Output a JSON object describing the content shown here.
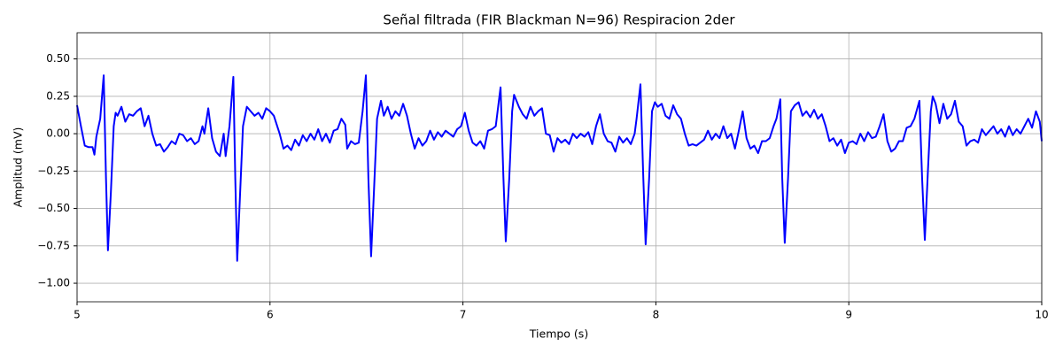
{
  "chart_data": {
    "type": "line",
    "title": "Señal filtrada (FIR Blackman N=96) Respiracion 2der",
    "x_label": "Tiempo (s)",
    "y_label": "Amplitud (mV)",
    "color": "#0000ff",
    "grid": true,
    "xlim": [
      5,
      10
    ],
    "xticks": [
      5,
      6,
      7,
      8,
      9,
      10
    ],
    "ylim": [
      -1.124,
      0.675
    ],
    "yticks": [
      {
        "value": -1,
        "label": "−1.00"
      },
      {
        "value": -0.75,
        "label": "−0.75"
      },
      {
        "value": -0.5,
        "label": "−0.50"
      },
      {
        "value": -0.25,
        "label": "−0.25"
      },
      {
        "value": 0,
        "label": "0.00"
      },
      {
        "value": 0.25,
        "label": "0.25"
      },
      {
        "value": 0.5,
        "label": "0.50"
      }
    ],
    "x": [
      5.0,
      5.02,
      5.04,
      5.06,
      5.08,
      5.09,
      5.1,
      5.12,
      5.138,
      5.15,
      5.16,
      5.175,
      5.19,
      5.2,
      5.21,
      5.23,
      5.25,
      5.27,
      5.29,
      5.31,
      5.33,
      5.35,
      5.37,
      5.39,
      5.41,
      5.43,
      5.45,
      5.47,
      5.49,
      5.51,
      5.53,
      5.55,
      5.57,
      5.59,
      5.61,
      5.63,
      5.65,
      5.66,
      5.68,
      5.7,
      5.72,
      5.74,
      5.76,
      5.77,
      5.79,
      5.81,
      5.82,
      5.83,
      5.845,
      5.86,
      5.88,
      5.9,
      5.92,
      5.94,
      5.96,
      5.98,
      6.0,
      6.02,
      6.05,
      6.07,
      6.09,
      6.11,
      6.13,
      6.15,
      6.17,
      6.19,
      6.21,
      6.23,
      6.25,
      6.27,
      6.29,
      6.31,
      6.33,
      6.35,
      6.37,
      6.39,
      6.4,
      6.42,
      6.44,
      6.46,
      6.48,
      6.497,
      6.51,
      6.524,
      6.54,
      6.555,
      6.575,
      6.59,
      6.61,
      6.63,
      6.65,
      6.67,
      6.69,
      6.71,
      6.73,
      6.75,
      6.77,
      6.79,
      6.81,
      6.83,
      6.85,
      6.87,
      6.89,
      6.91,
      6.93,
      6.95,
      6.97,
      6.99,
      7.01,
      7.03,
      7.05,
      7.07,
      7.09,
      7.11,
      7.13,
      7.15,
      7.17,
      7.195,
      7.21,
      7.222,
      7.24,
      7.255,
      7.265,
      7.29,
      7.31,
      7.33,
      7.35,
      7.37,
      7.39,
      7.41,
      7.43,
      7.45,
      7.47,
      7.49,
      7.51,
      7.53,
      7.55,
      7.57,
      7.59,
      7.61,
      7.63,
      7.65,
      7.67,
      7.69,
      7.71,
      7.73,
      7.75,
      7.77,
      7.79,
      7.81,
      7.83,
      7.85,
      7.87,
      7.89,
      7.9,
      7.92,
      7.935,
      7.947,
      7.965,
      7.98,
      7.995,
      8.01,
      8.03,
      8.05,
      8.07,
      8.09,
      8.11,
      8.13,
      8.15,
      8.17,
      8.19,
      8.21,
      8.23,
      8.25,
      8.27,
      8.29,
      8.31,
      8.33,
      8.35,
      8.37,
      8.39,
      8.41,
      8.43,
      8.45,
      8.47,
      8.49,
      8.51,
      8.53,
      8.55,
      8.57,
      8.59,
      8.61,
      8.625,
      8.645,
      8.655,
      8.668,
      8.685,
      8.7,
      8.72,
      8.74,
      8.76,
      8.78,
      8.8,
      8.82,
      8.84,
      8.86,
      8.88,
      8.9,
      8.92,
      8.94,
      8.96,
      8.98,
      9.0,
      9.02,
      9.04,
      9.06,
      9.08,
      9.1,
      9.12,
      9.14,
      9.16,
      9.18,
      9.2,
      9.22,
      9.24,
      9.26,
      9.28,
      9.3,
      9.32,
      9.34,
      9.366,
      9.38,
      9.394,
      9.41,
      9.425,
      9.435,
      9.45,
      9.47,
      9.49,
      9.51,
      9.53,
      9.55,
      9.57,
      9.59,
      9.61,
      9.63,
      9.65,
      9.67,
      9.69,
      9.71,
      9.73,
      9.75,
      9.77,
      9.79,
      9.81,
      9.83,
      9.85,
      9.87,
      9.89,
      9.91,
      9.93,
      9.95,
      9.97,
      9.99,
      10.0
    ],
    "values": [
      0.19,
      0.05,
      -0.08,
      -0.09,
      -0.09,
      -0.14,
      -0.02,
      0.1,
      0.39,
      -0.3,
      -0.78,
      -0.4,
      0.05,
      0.14,
      0.12,
      0.18,
      0.08,
      0.13,
      0.12,
      0.15,
      0.17,
      0.05,
      0.12,
      0.0,
      -0.08,
      -0.07,
      -0.12,
      -0.09,
      -0.05,
      -0.07,
      0.0,
      -0.01,
      -0.05,
      -0.03,
      -0.07,
      -0.05,
      0.05,
      0.0,
      0.17,
      -0.03,
      -0.12,
      -0.15,
      0.0,
      -0.15,
      0.05,
      0.38,
      -0.3,
      -0.85,
      -0.4,
      0.05,
      0.18,
      0.15,
      0.12,
      0.14,
      0.1,
      0.17,
      0.15,
      0.12,
      0.0,
      -0.1,
      -0.08,
      -0.11,
      -0.04,
      -0.08,
      -0.01,
      -0.05,
      0.0,
      -0.04,
      0.03,
      -0.05,
      0.0,
      -0.06,
      0.02,
      0.03,
      0.1,
      0.06,
      -0.1,
      -0.05,
      -0.07,
      -0.06,
      0.15,
      0.39,
      -0.3,
      -0.82,
      -0.35,
      0.1,
      0.22,
      0.12,
      0.18,
      0.1,
      0.15,
      0.12,
      0.2,
      0.12,
      0.0,
      -0.1,
      -0.03,
      -0.08,
      -0.05,
      0.02,
      -0.04,
      0.01,
      -0.02,
      0.02,
      0.0,
      -0.02,
      0.03,
      0.05,
      0.14,
      0.02,
      -0.06,
      -0.08,
      -0.05,
      -0.1,
      0.02,
      0.03,
      0.05,
      0.31,
      -0.3,
      -0.72,
      -0.3,
      0.15,
      0.26,
      0.18,
      0.13,
      0.1,
      0.18,
      0.12,
      0.15,
      0.17,
      0.0,
      -0.01,
      -0.12,
      -0.03,
      -0.06,
      -0.04,
      -0.07,
      0.0,
      -0.03,
      0.0,
      -0.02,
      0.01,
      -0.07,
      0.05,
      0.13,
      0.0,
      -0.05,
      -0.06,
      -0.12,
      -0.02,
      -0.06,
      -0.03,
      -0.07,
      0.0,
      0.1,
      0.33,
      -0.3,
      -0.74,
      -0.3,
      0.15,
      0.21,
      0.18,
      0.2,
      0.12,
      0.1,
      0.19,
      0.13,
      0.1,
      0.0,
      -0.08,
      -0.07,
      -0.08,
      -0.06,
      -0.04,
      0.02,
      -0.04,
      0.0,
      -0.03,
      0.05,
      -0.03,
      0.0,
      -0.1,
      0.02,
      0.15,
      -0.03,
      -0.1,
      -0.08,
      -0.13,
      -0.05,
      -0.05,
      -0.03,
      0.05,
      0.1,
      0.23,
      -0.3,
      -0.73,
      -0.3,
      0.15,
      0.19,
      0.21,
      0.12,
      0.15,
      0.11,
      0.16,
      0.1,
      0.13,
      0.05,
      -0.05,
      -0.03,
      -0.08,
      -0.04,
      -0.13,
      -0.06,
      -0.05,
      -0.07,
      0.0,
      -0.05,
      0.01,
      -0.03,
      -0.02,
      0.05,
      0.13,
      -0.05,
      -0.12,
      -0.1,
      -0.05,
      -0.05,
      0.04,
      0.05,
      0.1,
      0.22,
      -0.3,
      -0.71,
      -0.25,
      0.15,
      0.25,
      0.2,
      0.07,
      0.2,
      0.1,
      0.13,
      0.22,
      0.08,
      0.05,
      -0.08,
      -0.05,
      -0.04,
      -0.06,
      0.03,
      -0.01,
      0.02,
      0.05,
      0.0,
      0.03,
      -0.02,
      0.05,
      -0.01,
      0.03,
      0.0,
      0.05,
      0.1,
      0.04,
      0.15,
      0.08,
      -0.05
    ]
  }
}
